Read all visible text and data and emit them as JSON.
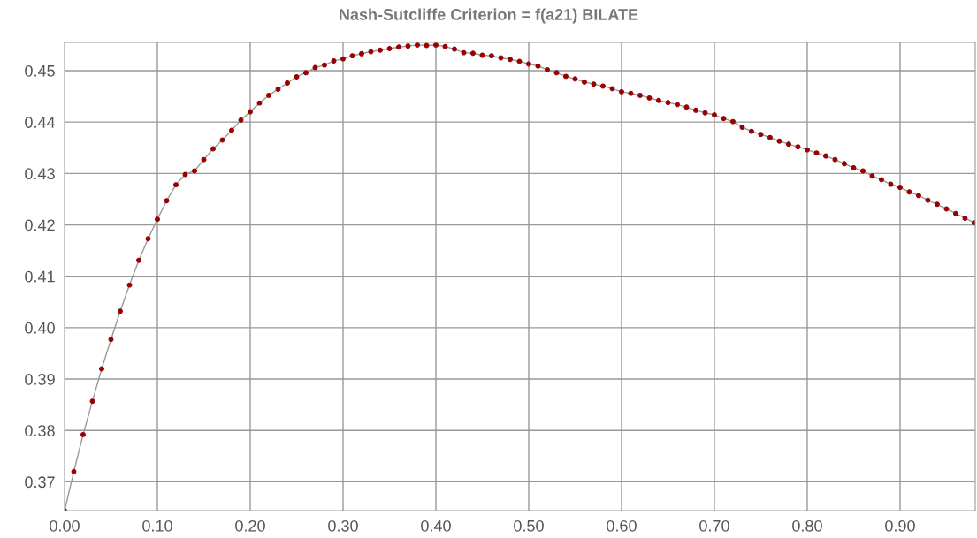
{
  "chart_data": {
    "type": "line",
    "title": "Nash-Sutcliffe Criterion = f(a21) BILATE",
    "x": [
      0.0,
      0.01,
      0.02,
      0.03,
      0.04,
      0.05,
      0.06,
      0.07,
      0.08,
      0.09,
      0.1,
      0.11,
      0.12,
      0.13,
      0.14,
      0.15,
      0.16,
      0.17,
      0.18,
      0.19,
      0.2,
      0.21,
      0.22,
      0.23,
      0.24,
      0.25,
      0.26,
      0.27,
      0.28,
      0.29,
      0.3,
      0.31,
      0.32,
      0.33,
      0.34,
      0.35,
      0.36,
      0.37,
      0.38,
      0.39,
      0.4,
      0.41,
      0.42,
      0.43,
      0.44,
      0.45,
      0.46,
      0.47,
      0.48,
      0.49,
      0.5,
      0.51,
      0.52,
      0.53,
      0.54,
      0.55,
      0.56,
      0.57,
      0.58,
      0.59,
      0.6,
      0.61,
      0.62,
      0.63,
      0.64,
      0.65,
      0.66,
      0.67,
      0.68,
      0.69,
      0.7,
      0.71,
      0.72,
      0.73,
      0.74,
      0.75,
      0.76,
      0.77,
      0.78,
      0.79,
      0.8,
      0.81,
      0.82,
      0.83,
      0.84,
      0.85,
      0.86,
      0.87,
      0.88,
      0.89,
      0.9,
      0.91,
      0.92,
      0.93,
      0.94,
      0.95,
      0.96,
      0.97,
      0.98
    ],
    "series": [
      {
        "color": "#990000",
        "values": [
          0.3644,
          0.372,
          0.3792,
          0.3857,
          0.392,
          0.3977,
          0.4032,
          0.4083,
          0.4131,
          0.4173,
          0.4211,
          0.4247,
          0.4278,
          0.4298,
          0.4305,
          0.4327,
          0.4348,
          0.4365,
          0.4384,
          0.4404,
          0.442,
          0.4437,
          0.4452,
          0.4464,
          0.4476,
          0.4488,
          0.4496,
          0.4506,
          0.4511,
          0.4519,
          0.4523,
          0.4529,
          0.4533,
          0.4537,
          0.454,
          0.4543,
          0.4546,
          0.4548,
          0.455,
          0.4549,
          0.455,
          0.4547,
          0.4542,
          0.4535,
          0.4534,
          0.453,
          0.4529,
          0.4525,
          0.4522,
          0.4518,
          0.4513,
          0.4509,
          0.4502,
          0.4496,
          0.4489,
          0.4484,
          0.4478,
          0.4474,
          0.447,
          0.4465,
          0.4459,
          0.4456,
          0.4452,
          0.4447,
          0.4442,
          0.4438,
          0.4434,
          0.4429,
          0.4423,
          0.4418,
          0.4414,
          0.4407,
          0.4401,
          0.439,
          0.4382,
          0.4376,
          0.437,
          0.4363,
          0.4357,
          0.4352,
          0.4346,
          0.434,
          0.4334,
          0.4327,
          0.4319,
          0.4311,
          0.4305,
          0.4295,
          0.4288,
          0.4279,
          0.4273,
          0.4264,
          0.4257,
          0.4248,
          0.424,
          0.4231,
          0.4222,
          0.4213,
          0.4204
        ]
      }
    ],
    "xlim": [
      0,
      0.981
    ],
    "ylim": [
      0.3644,
      0.4555
    ],
    "xticks": [
      {
        "value": 0,
        "label": "0.00"
      },
      {
        "value": 0.1,
        "label": "0.10"
      },
      {
        "value": 0.2,
        "label": "0.20"
      },
      {
        "value": 0.3,
        "label": "0.30"
      },
      {
        "value": 0.4,
        "label": "0.40"
      },
      {
        "value": 0.5,
        "label": "0.50"
      },
      {
        "value": 0.6,
        "label": "0.60"
      },
      {
        "value": 0.7,
        "label": "0.70"
      },
      {
        "value": 0.8,
        "label": "0.80"
      },
      {
        "value": 0.9,
        "label": "0.90"
      }
    ],
    "yticks": [
      {
        "value": 0.37,
        "label": "0.37"
      },
      {
        "value": 0.38,
        "label": "0.38"
      },
      {
        "value": 0.39,
        "label": "0.39"
      },
      {
        "value": 0.4,
        "label": "0.40"
      },
      {
        "value": 0.41,
        "label": "0.41"
      },
      {
        "value": 0.42,
        "label": "0.42"
      },
      {
        "value": 0.43,
        "label": "0.43"
      },
      {
        "value": 0.44,
        "label": "0.44"
      },
      {
        "value": 0.45,
        "label": "0.45"
      }
    ],
    "grid": true,
    "marker": "circle",
    "line_style": "solid"
  }
}
